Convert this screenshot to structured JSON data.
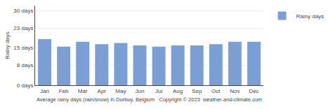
{
  "chart_data": {
    "type": "bar",
    "categories": [
      "Jan",
      "Feb",
      "Mar",
      "Apr",
      "May",
      "Jun",
      "Jul",
      "Aug",
      "Sep",
      "Oct",
      "Nov",
      "Dec"
    ],
    "series": [
      {
        "name": "Rainy days",
        "color": "#7B9FD4",
        "values": [
          18.5,
          15.5,
          17.5,
          16.5,
          17.0,
          16.0,
          15.5,
          16.0,
          16.0,
          16.5,
          17.5,
          17.5
        ]
      }
    ],
    "ylim": [
      0,
      32
    ],
    "yticks": [
      {
        "value": 0,
        "label": "0 days"
      },
      {
        "value": 8,
        "label": "8 days"
      },
      {
        "value": 15,
        "label": "15 days"
      },
      {
        "value": 23,
        "label": "23 days"
      },
      {
        "value": 30,
        "label": "30 days"
      }
    ],
    "ylabel": "Rainy days",
    "xlabel": "Average rainy days (rain/snow) in Durbuy, Belgium   Copyright © 2023  weather-and-climate.com",
    "grid": true,
    "legend": "upper right"
  }
}
